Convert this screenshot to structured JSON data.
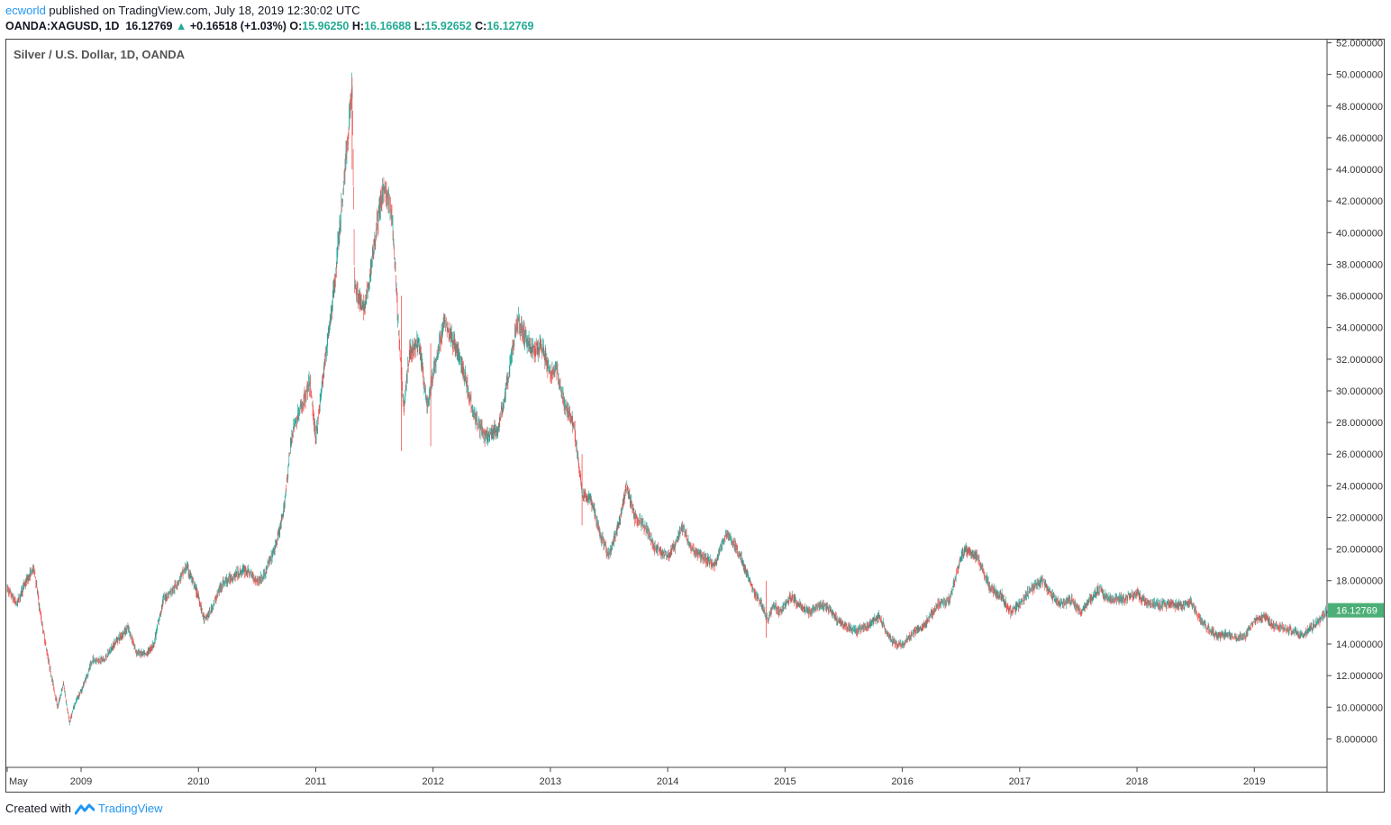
{
  "header": {
    "user": "ecworld",
    "published": "published on TradingView.com, July 18, 2019 12:30:02 UTC",
    "symbol": "OANDA:XAGUSD, 1D",
    "last": "16.12769",
    "change_arrow": "▲",
    "change": "+0.16518 (+1.03%)",
    "o_label": "O:",
    "o_value": "15.96250",
    "h_label": "H:",
    "h_value": "16.16688",
    "l_label": "L:",
    "l_value": "15.92652",
    "c_label": "C:",
    "c_value": "16.12769"
  },
  "chart_title": "Silver / U.S. Dollar, 1D, OANDA",
  "footer": {
    "created": "Created with",
    "brand": "TradingView"
  },
  "colors": {
    "up": "#26a69a",
    "down": "#ef5350",
    "badge": "#4caf77",
    "axis": "#444444"
  },
  "chart_data": {
    "type": "candlestick",
    "title": "Silver / U.S. Dollar, 1D, OANDA",
    "x_range": [
      2008.37,
      2019.62
    ],
    "y_range": [
      6.2,
      52.2
    ],
    "y_ticks": [
      8,
      10,
      12,
      14,
      16,
      18,
      20,
      22,
      24,
      26,
      28,
      30,
      32,
      34,
      36,
      38,
      40,
      42,
      44,
      46,
      48,
      50,
      52
    ],
    "x_ticks": [
      {
        "label": "May",
        "x": 2008.37
      },
      {
        "label": "2009",
        "x": 2009.0
      },
      {
        "label": "2010",
        "x": 2010.0
      },
      {
        "label": "2011",
        "x": 2011.0
      },
      {
        "label": "2012",
        "x": 2012.0
      },
      {
        "label": "2013",
        "x": 2013.0
      },
      {
        "label": "2014",
        "x": 2014.0
      },
      {
        "label": "2015",
        "x": 2015.0
      },
      {
        "label": "2016",
        "x": 2016.0
      },
      {
        "label": "2017",
        "x": 2017.0
      },
      {
        "label": "2018",
        "x": 2018.0
      },
      {
        "label": "2019",
        "x": 2019.0
      }
    ],
    "last_price": "16.12769",
    "path": [
      [
        2008.37,
        17.5
      ],
      [
        2008.45,
        16.5
      ],
      [
        2008.52,
        17.8
      ],
      [
        2008.6,
        18.8
      ],
      [
        2008.65,
        16.0
      ],
      [
        2008.72,
        13.0
      ],
      [
        2008.8,
        10.0
      ],
      [
        2008.85,
        11.5
      ],
      [
        2008.9,
        9.0
      ],
      [
        2008.95,
        10.3
      ],
      [
        2009.0,
        11.0
      ],
      [
        2009.1,
        13.0
      ],
      [
        2009.2,
        13.0
      ],
      [
        2009.3,
        14.2
      ],
      [
        2009.4,
        15.0
      ],
      [
        2009.47,
        13.5
      ],
      [
        2009.55,
        13.3
      ],
      [
        2009.62,
        14.0
      ],
      [
        2009.7,
        16.8
      ],
      [
        2009.8,
        17.6
      ],
      [
        2009.9,
        18.9
      ],
      [
        2010.0,
        17.0
      ],
      [
        2010.05,
        15.5
      ],
      [
        2010.1,
        16.0
      ],
      [
        2010.2,
        17.8
      ],
      [
        2010.3,
        18.3
      ],
      [
        2010.4,
        18.7
      ],
      [
        2010.5,
        18.0
      ],
      [
        2010.55,
        18.2
      ],
      [
        2010.65,
        20.0
      ],
      [
        2010.72,
        22.0
      ],
      [
        2010.8,
        27.5
      ],
      [
        2010.88,
        29.0
      ],
      [
        2010.95,
        30.5
      ],
      [
        2011.0,
        27.0
      ],
      [
        2011.08,
        32.0
      ],
      [
        2011.15,
        36.0
      ],
      [
        2011.25,
        44.0
      ],
      [
        2011.31,
        49.5
      ],
      [
        2011.33,
        37.0
      ],
      [
        2011.4,
        35.0
      ],
      [
        2011.45,
        36.5
      ],
      [
        2011.5,
        39.5
      ],
      [
        2011.58,
        43.0
      ],
      [
        2011.65,
        41.0
      ],
      [
        2011.72,
        32.0
      ],
      [
        2011.75,
        29.0
      ],
      [
        2011.8,
        32.5
      ],
      [
        2011.88,
        33.0
      ],
      [
        2011.95,
        29.0
      ],
      [
        2012.0,
        31.0
      ],
      [
        2012.1,
        34.5
      ],
      [
        2012.18,
        33.0
      ],
      [
        2012.25,
        31.5
      ],
      [
        2012.35,
        28.5
      ],
      [
        2012.45,
        27.0
      ],
      [
        2012.55,
        27.5
      ],
      [
        2012.62,
        30.0
      ],
      [
        2012.72,
        34.5
      ],
      [
        2012.78,
        33.5
      ],
      [
        2012.85,
        32.5
      ],
      [
        2012.92,
        33.0
      ],
      [
        2013.0,
        31.0
      ],
      [
        2013.05,
        31.5
      ],
      [
        2013.12,
        29.0
      ],
      [
        2013.2,
        28.0
      ],
      [
        2013.27,
        23.5
      ],
      [
        2013.35,
        23.0
      ],
      [
        2013.42,
        21.0
      ],
      [
        2013.5,
        19.5
      ],
      [
        2013.58,
        21.5
      ],
      [
        2013.65,
        24.0
      ],
      [
        2013.72,
        22.0
      ],
      [
        2013.8,
        21.5
      ],
      [
        2013.9,
        20.0
      ],
      [
        2014.0,
        19.5
      ],
      [
        2014.08,
        20.5
      ],
      [
        2014.12,
        21.5
      ],
      [
        2014.2,
        20.0
      ],
      [
        2014.3,
        19.5
      ],
      [
        2014.4,
        19.0
      ],
      [
        2014.5,
        21.0
      ],
      [
        2014.55,
        20.5
      ],
      [
        2014.62,
        19.5
      ],
      [
        2014.72,
        17.5
      ],
      [
        2014.8,
        16.5
      ],
      [
        2014.85,
        15.5
      ],
      [
        2014.9,
        16.5
      ],
      [
        2014.96,
        16.0
      ],
      [
        2015.05,
        17.0
      ],
      [
        2015.12,
        16.5
      ],
      [
        2015.2,
        16.0
      ],
      [
        2015.3,
        16.5
      ],
      [
        2015.38,
        16.2
      ],
      [
        2015.45,
        15.5
      ],
      [
        2015.55,
        15.0
      ],
      [
        2015.62,
        14.8
      ],
      [
        2015.72,
        15.2
      ],
      [
        2015.8,
        15.8
      ],
      [
        2015.88,
        14.5
      ],
      [
        2015.95,
        14.0
      ],
      [
        2016.0,
        13.9
      ],
      [
        2016.1,
        14.8
      ],
      [
        2016.2,
        15.3
      ],
      [
        2016.3,
        16.5
      ],
      [
        2016.4,
        16.8
      ],
      [
        2016.5,
        19.5
      ],
      [
        2016.55,
        20.0
      ],
      [
        2016.65,
        19.3
      ],
      [
        2016.75,
        17.5
      ],
      [
        2016.85,
        17.0
      ],
      [
        2016.92,
        16.0
      ],
      [
        2017.0,
        16.5
      ],
      [
        2017.1,
        17.5
      ],
      [
        2017.2,
        18.0
      ],
      [
        2017.28,
        17.0
      ],
      [
        2017.35,
        16.5
      ],
      [
        2017.45,
        16.8
      ],
      [
        2017.52,
        16.0
      ],
      [
        2017.6,
        16.8
      ],
      [
        2017.68,
        17.5
      ],
      [
        2017.75,
        16.8
      ],
      [
        2017.85,
        16.8
      ],
      [
        2017.95,
        17.0
      ],
      [
        2018.0,
        17.2
      ],
      [
        2018.1,
        16.5
      ],
      [
        2018.2,
        16.5
      ],
      [
        2018.3,
        16.5
      ],
      [
        2018.4,
        16.4
      ],
      [
        2018.45,
        16.8
      ],
      [
        2018.52,
        15.8
      ],
      [
        2018.6,
        15.0
      ],
      [
        2018.68,
        14.5
      ],
      [
        2018.75,
        14.6
      ],
      [
        2018.85,
        14.4
      ],
      [
        2018.92,
        14.5
      ],
      [
        2019.0,
        15.5
      ],
      [
        2019.1,
        15.8
      ],
      [
        2019.15,
        15.2
      ],
      [
        2019.25,
        15.0
      ],
      [
        2019.35,
        14.8
      ],
      [
        2019.42,
        14.5
      ],
      [
        2019.48,
        15.0
      ],
      [
        2019.55,
        15.4
      ],
      [
        2019.6,
        15.9
      ],
      [
        2019.62,
        16.13
      ]
    ]
  }
}
